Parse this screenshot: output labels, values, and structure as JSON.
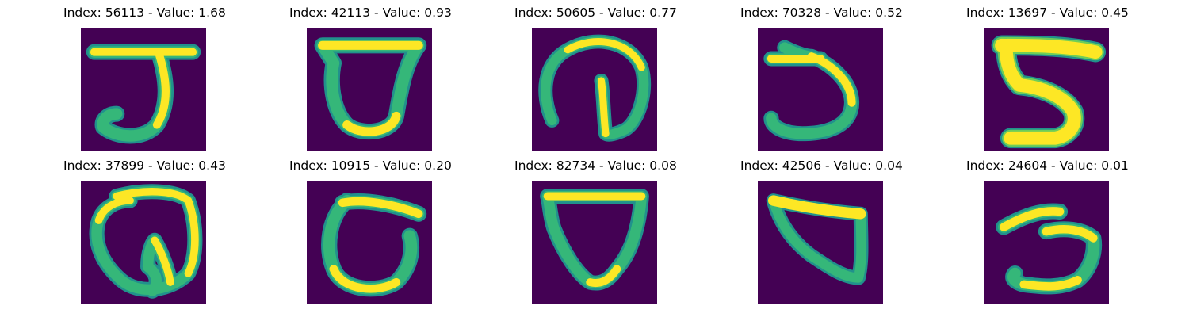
{
  "figure": {
    "colormap": {
      "background": "#440154",
      "low": "#31688e",
      "mid": "#35b779",
      "high": "#fde725"
    },
    "panels": [
      {
        "title": "Index: 56113 - Value: 1.68",
        "digit_shape": "5"
      },
      {
        "title": "Index: 42113 - Value: 0.93",
        "digit_shape": "0"
      },
      {
        "title": "Index: 50605 - Value: 0.77",
        "digit_shape": "loop with inner stroke"
      },
      {
        "title": "Index: 70328 - Value: 0.52",
        "digit_shape": "5"
      },
      {
        "title": "Index: 13697 - Value: 0.45",
        "digit_shape": "5"
      },
      {
        "title": "Index: 37899 - Value: 0.43",
        "digit_shape": "loop with inner stroke"
      },
      {
        "title": "Index: 10915 - Value: 0.20",
        "digit_shape": "0"
      },
      {
        "title": "Index: 82734 - Value: 0.08",
        "digit_shape": "0"
      },
      {
        "title": "Index: 42506 - Value: 0.04",
        "digit_shape": "0"
      },
      {
        "title": "Index: 24604 - Value: 0.01",
        "digit_shape": "3"
      }
    ]
  }
}
